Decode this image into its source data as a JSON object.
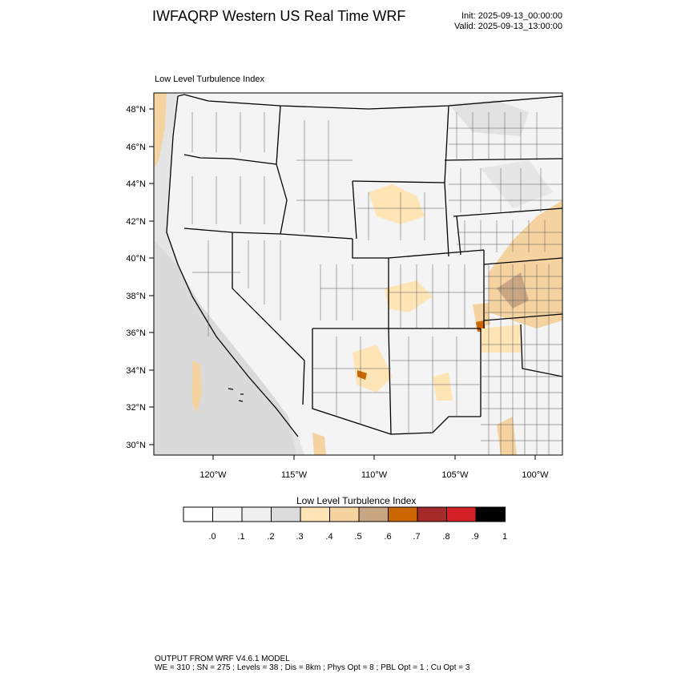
{
  "header": {
    "title": "IWFAQRP Western US Real Time WRF",
    "init": "Init: 2025-09-13_00:00:00",
    "valid": "Valid: 2025-09-13_13:00:00"
  },
  "plot": {
    "title": "Low Level Turbulence Index",
    "lat_labels": [
      "48°N",
      "46°N",
      "44°N",
      "42°N",
      "40°N",
      "38°N",
      "36°N",
      "34°N",
      "32°N",
      "30°N"
    ],
    "lon_labels": [
      "120°W",
      "115°W",
      "110°W",
      "105°W",
      "100°W"
    ]
  },
  "colorbar": {
    "title": "Low Level Turbulence Index",
    "ticks": [
      ".0",
      ".1",
      ".2",
      ".3",
      ".4",
      ".5",
      ".6",
      ".7",
      ".8",
      ".9",
      "1"
    ],
    "colors": [
      "#ffffff",
      "#f7f7f7",
      "#efefef",
      "#dcdcdc",
      "#ffe4b5",
      "#f5d3a0",
      "#c8a684",
      "#cc6600",
      "#a52a2a",
      "#d42027",
      "#000000"
    ]
  },
  "footer": {
    "line1": "OUTPUT FROM WRF V4.6.1 MODEL",
    "line2": "WE = 310 ; SN = 275 ; Levels = 38 ; Dis = 8km ; Phys Opt = 8 ; PBL Opt = 1 ; Cu Opt = 3"
  }
}
